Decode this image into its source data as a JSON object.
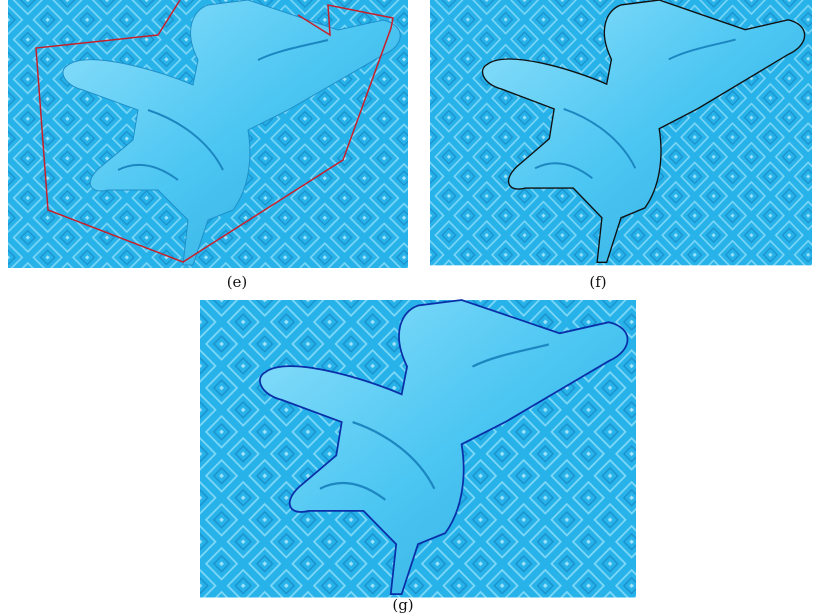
{
  "panels": [
    {
      "label": "(e)"
    },
    {
      "label": "(f)"
    },
    {
      "label": "(g)"
    }
  ]
}
